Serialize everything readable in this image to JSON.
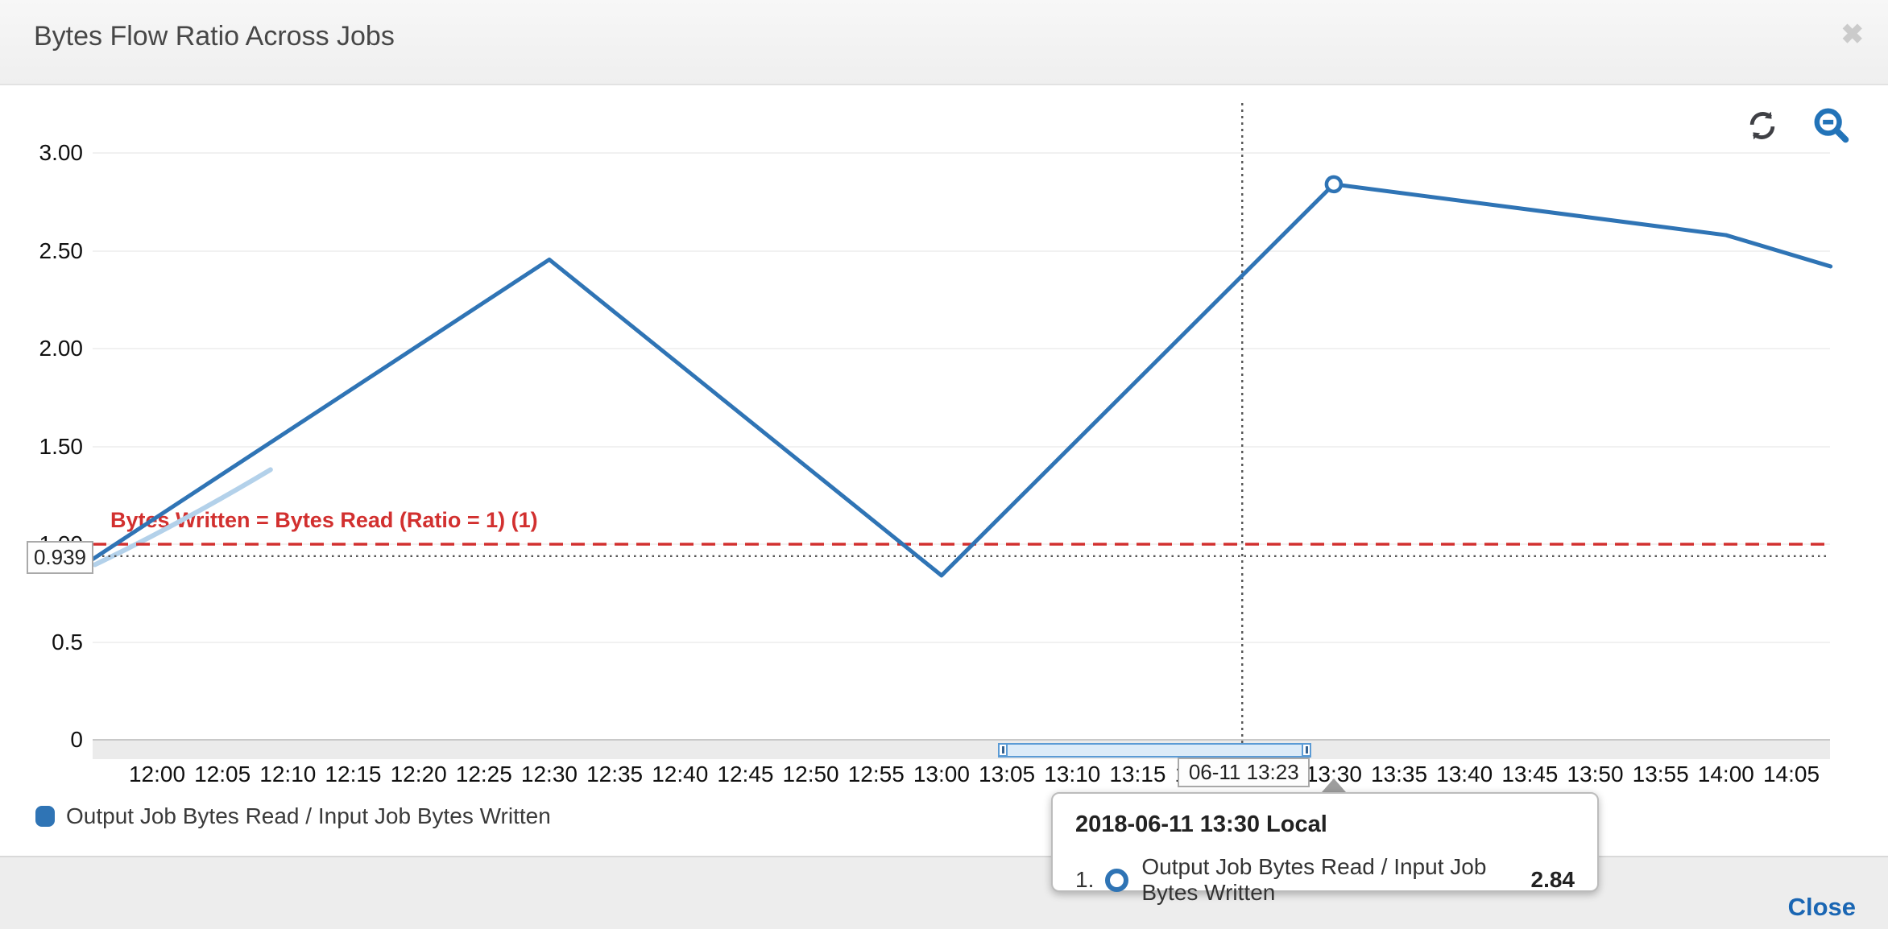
{
  "modal": {
    "title": "Bytes Flow Ratio Across Jobs",
    "close_icon": "✖",
    "close_button_label": "Close"
  },
  "toolbar": {
    "refresh_icon": "refresh-arrows",
    "zoom_out_icon": "magnifier-minus"
  },
  "colors": {
    "series_blue": "#2f74b5",
    "annotation_red": "#d2302f",
    "crosshair_gray": "#555555",
    "link_blue": "#1a66b3"
  },
  "chart_data": {
    "type": "line",
    "title": "Bytes Flow Ratio Across Jobs",
    "xlabel": "",
    "ylabel": "",
    "ylim": [
      0,
      3
    ],
    "grid": true,
    "y_ticks": [
      "3.00",
      "2.50",
      "2.00",
      "1.50",
      "1.00",
      "0.5",
      "0"
    ],
    "y_tick_values": [
      3,
      2.5,
      2,
      1.5,
      1,
      0.5,
      0
    ],
    "x_ticks": [
      "12:00",
      "12:05",
      "12:10",
      "12:15",
      "12:20",
      "12:25",
      "12:30",
      "12:35",
      "12:40",
      "12:45",
      "12:50",
      "12:55",
      "13:00",
      "13:05",
      "13:10",
      "13:15",
      "13:20",
      "13:25",
      "13:30",
      "13:35",
      "13:40",
      "13:45",
      "13:50",
      "13:55",
      "14:00",
      "14:05"
    ],
    "x_tick_minutes": [
      720,
      725,
      730,
      735,
      740,
      745,
      750,
      755,
      760,
      765,
      770,
      775,
      780,
      785,
      790,
      795,
      800,
      805,
      810,
      815,
      820,
      825,
      830,
      835,
      840,
      845
    ],
    "series": [
      {
        "name": "Output Job Bytes Read / Input Job Bytes Written",
        "color": "#2f74b5",
        "points_min_val": [
          [
            715,
            0.92
          ],
          [
            750,
            2.455
          ],
          [
            780,
            0.84
          ],
          [
            810,
            2.84
          ],
          [
            840,
            2.58
          ],
          [
            848,
            2.42
          ]
        ]
      }
    ],
    "annotation": {
      "label": "Bytes Written = Bytes Read (Ratio = 1) (1)",
      "value": 1,
      "color": "#d2302f"
    },
    "crosshair": {
      "x_label": "06-11 13:23",
      "x_minute": 803,
      "y_label": "0.939",
      "y_value": 0.939
    },
    "hover_point": {
      "minute": 810,
      "value": 2.84
    },
    "scrubber": {
      "start_minute": 784.3,
      "end_minute": 808.3
    },
    "legend_position": "bottom-left"
  },
  "tooltip": {
    "title": "2018-06-11 13:30 Local",
    "row_index": "1.",
    "series_label": "Output Job Bytes Read / Input Job Bytes Written",
    "value": "2.84"
  },
  "legend": {
    "label": "Output Job Bytes Read / Input Job Bytes Written"
  }
}
